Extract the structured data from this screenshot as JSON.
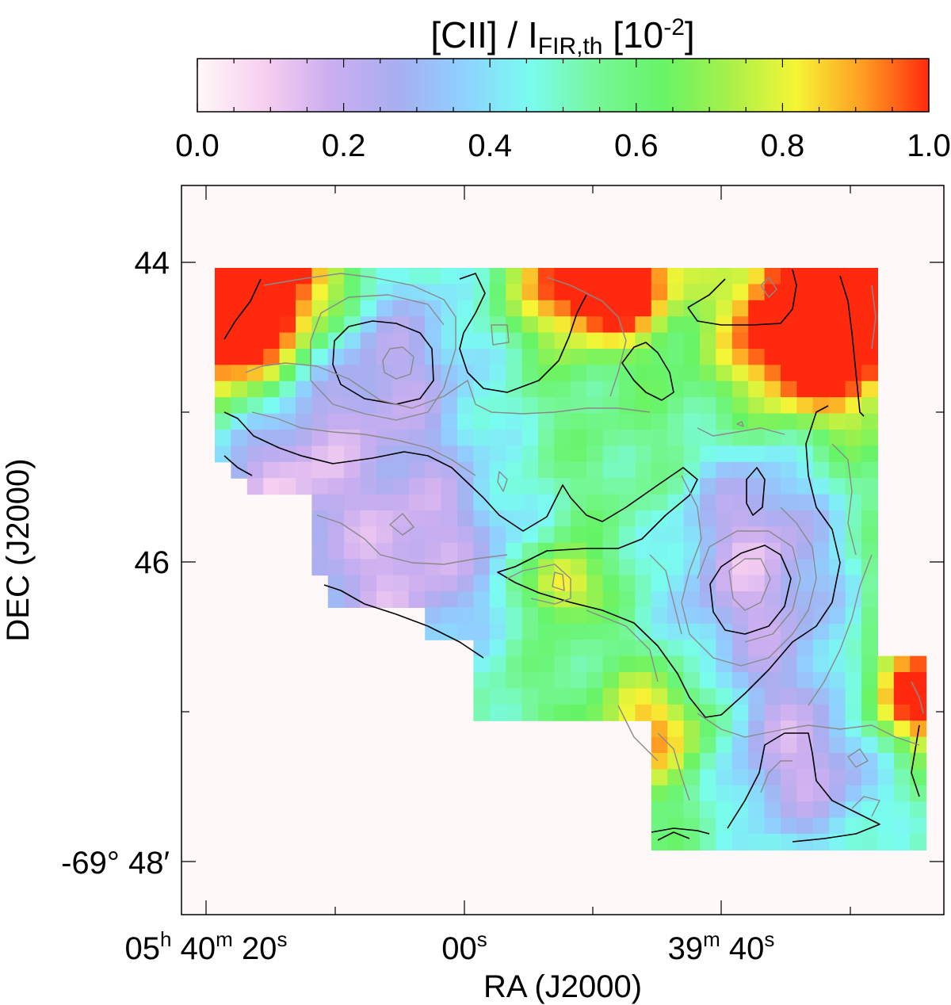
{
  "chart_data": {
    "type": "heatmap",
    "colorbar": {
      "title_main": "[CII] / I",
      "title_sub": "FIR,th",
      "title_unit_base": " [10",
      "title_unit_exp": "-2",
      "title_unit_close": "]",
      "ticks": [
        "0.0",
        "0.2",
        "0.4",
        "0.6",
        "0.8",
        "1.0"
      ],
      "range": [
        0.0,
        1.0
      ],
      "colors": [
        "#fff8f8",
        "#f7cff0",
        "#cbaef0",
        "#a8aef0",
        "#8fd0ff",
        "#79fcf0",
        "#76f79a",
        "#66f466",
        "#a8f04a",
        "#f5f536",
        "#ff9e22",
        "#ff2a0e"
      ]
    },
    "xlabel": "RA (J2000)",
    "ylabel": "DEC (J2000)",
    "xticks": [
      {
        "h": "05",
        "h_unit": "h",
        "m": "40",
        "m_unit": "m",
        "s": "20",
        "s_unit": "s"
      },
      {
        "h": "",
        "h_unit": "",
        "m": "",
        "m_unit": "",
        "s": "00",
        "s_unit": "s"
      },
      {
        "h": "",
        "h_unit": "",
        "m": "39",
        "m_unit": "m",
        "s": "40",
        "s_unit": "s"
      }
    ],
    "yticks": [
      "44",
      "46",
      "-69° 48′"
    ],
    "contours": {
      "black_levels": "outer",
      "gray_levels": "inner"
    }
  }
}
